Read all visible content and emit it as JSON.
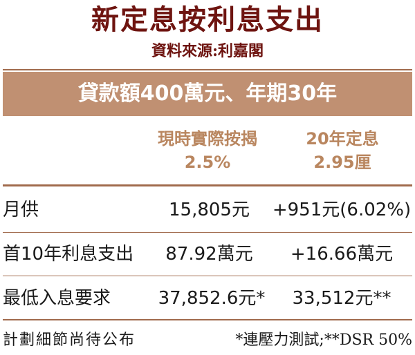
{
  "title": "新定息按利息支出",
  "source": "資料來源:利嘉閣",
  "banner": "貸款額400萬元、年期30年",
  "columns": [
    {
      "name": "現時實際按揭",
      "rate": "2.5%"
    },
    {
      "name": "20年定息",
      "rate": "2.95厘"
    }
  ],
  "rows": [
    {
      "label": "月供",
      "current": "15,805元",
      "fixed": "+951元(6.02%)"
    },
    {
      "label": "首10年利息支出",
      "current": "87.92萬元",
      "fixed": "+16.66萬元"
    },
    {
      "label": "最低入息要求",
      "current": "37,852.6元*",
      "fixed": "33,512元**"
    }
  ],
  "footer": {
    "left": "計劃細節尚待公布",
    "right": "*連壓力測試;**DSR 50%"
  },
  "colors": {
    "title": "#6e1410",
    "banner_bg": "#c09072",
    "column_header": "#b9865f",
    "rule": "#a06a4c"
  }
}
